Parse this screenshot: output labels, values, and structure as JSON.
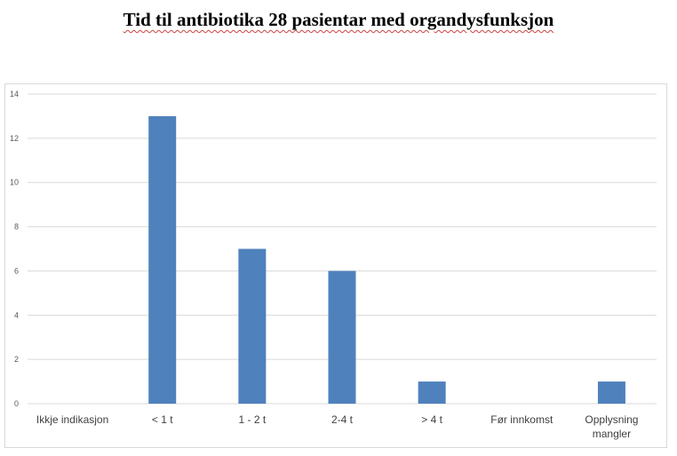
{
  "chart_data": {
    "type": "bar",
    "title": "Tid til antibiotika 28 pasientar med organdysfunksjon",
    "categories": [
      "Ikkje indikasjon",
      "< 1 t",
      "1 - 2 t",
      "2-4 t",
      "> 4 t",
      "Før innkomst",
      "Opplysning mangler"
    ],
    "values": [
      0,
      13,
      7,
      6,
      1,
      0,
      1
    ],
    "ylim": [
      0,
      14
    ],
    "yticks": [
      0,
      2,
      4,
      6,
      8,
      10,
      12,
      14
    ],
    "grid": true,
    "bar_color": "#4f81bd",
    "grid_color": "#d9d9d9",
    "xlabel": "",
    "ylabel": ""
  }
}
